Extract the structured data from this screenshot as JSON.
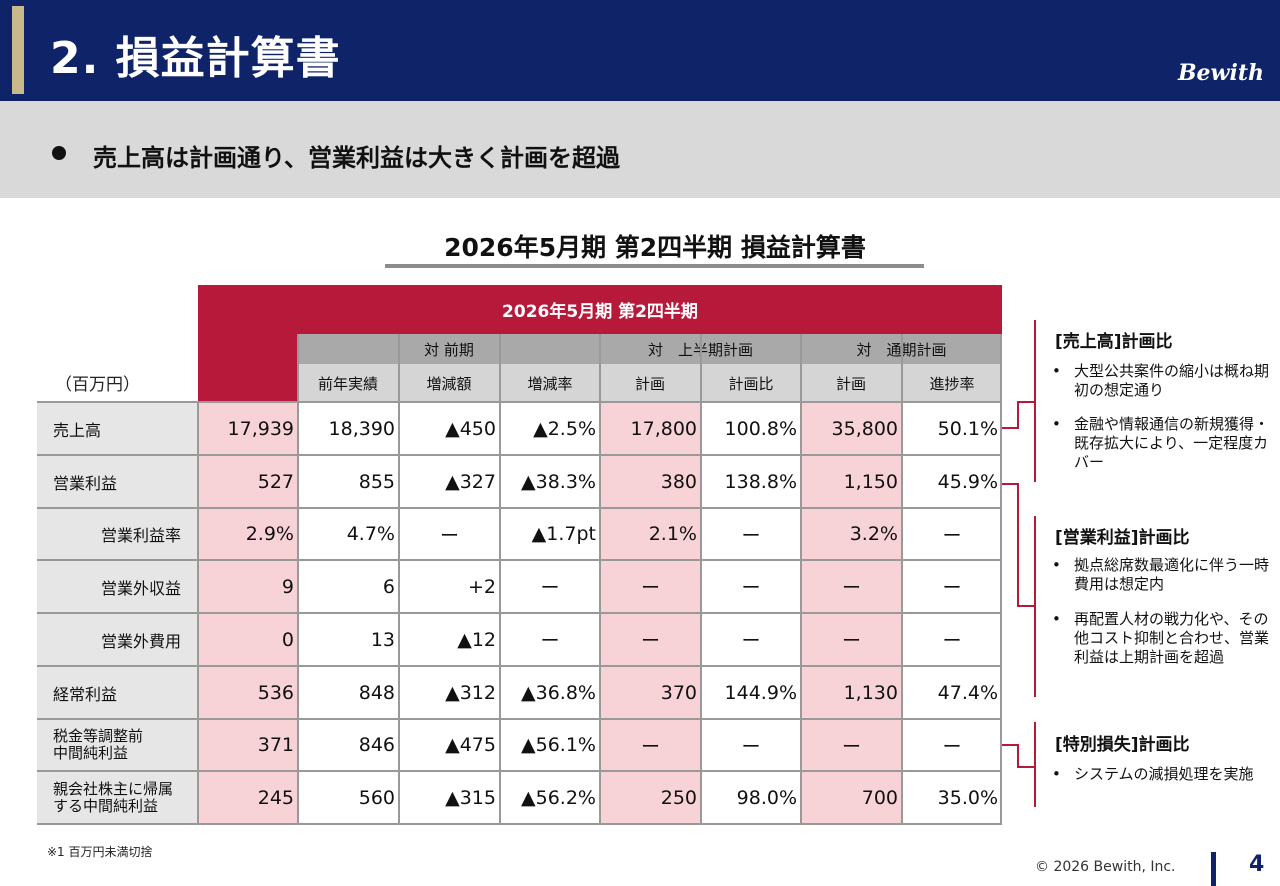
{
  "header": {
    "title": "2. 損益計算書",
    "brand": "Bewith"
  },
  "headline": "売上高は計画通り、営業利益は大きく計画を超過",
  "table_title": "2026年5月期 第2四半期 損益計算書",
  "table": {
    "period_header": "2026年5月期 第2四半期",
    "unit": "（百万円）",
    "groups": [
      "対 前期",
      "対　上半期計画",
      "対　通期計画"
    ],
    "columns": [
      "前年実績",
      "増減額",
      "増減率",
      "計画",
      "計画比",
      "計画",
      "進捗率"
    ],
    "rows": [
      {
        "label": "売上高",
        "values": [
          "17,939",
          "18,390",
          "▲450",
          "▲2.5%",
          "17,800",
          "100.8%",
          "35,800",
          "50.1%"
        ]
      },
      {
        "label": "営業利益",
        "values": [
          "527",
          "855",
          "▲327",
          "▲38.3%",
          "380",
          "138.8%",
          "1,150",
          "45.9%"
        ]
      },
      {
        "label": "営業利益率",
        "values": [
          "2.9%",
          "4.7%",
          "ー",
          "▲1.7pt",
          "2.1%",
          "ー",
          "3.2%",
          "ー"
        ]
      },
      {
        "label": "営業外収益",
        "values": [
          "9",
          "6",
          "+2",
          "ー",
          "ー",
          "ー",
          "ー",
          "ー"
        ]
      },
      {
        "label": "営業外費用",
        "values": [
          "0",
          "13",
          "▲12",
          "ー",
          "ー",
          "ー",
          "ー",
          "ー"
        ]
      },
      {
        "label": "経常利益",
        "values": [
          "536",
          "848",
          "▲312",
          "▲36.8%",
          "370",
          "144.9%",
          "1,130",
          "47.4%"
        ]
      },
      {
        "label": "税金等調整前\n中間純利益",
        "values": [
          "371",
          "846",
          "▲475",
          "▲56.1%",
          "ー",
          "ー",
          "ー",
          "ー"
        ]
      },
      {
        "label": "親会社株主に帰属\nする中間純利益",
        "values": [
          "245",
          "560",
          "▲315",
          "▲56.2%",
          "250",
          "98.0%",
          "700",
          "35.0%"
        ]
      }
    ]
  },
  "notes": [
    {
      "title": "[売上高]計画比",
      "items": [
        "大型公共案件の縮小は概ね期初の想定通り",
        "金融や情報通信の新規獲得・既存拡大により、一定程度カバー"
      ]
    },
    {
      "title": "[営業利益]計画比",
      "items": [
        "拠点総席数最適化に伴う一時費用は想定内",
        "再配置人材の戦力化や、その他コスト抑制と合わせ、営業利益は上期計画を超過"
      ]
    },
    {
      "title": "[特別損失]計画比",
      "items": [
        "システムの減損処理を実施"
      ]
    }
  ],
  "bullet_char": "•",
  "footnote": "※1 百万円未満切捨",
  "copyright": "© 2026 Bewith, Inc.",
  "page_number": "4",
  "colors": {
    "navy": "#0f2468",
    "crimson": "#b7193a",
    "pink": "#f7d3d8",
    "gold": "#c8b88a"
  }
}
